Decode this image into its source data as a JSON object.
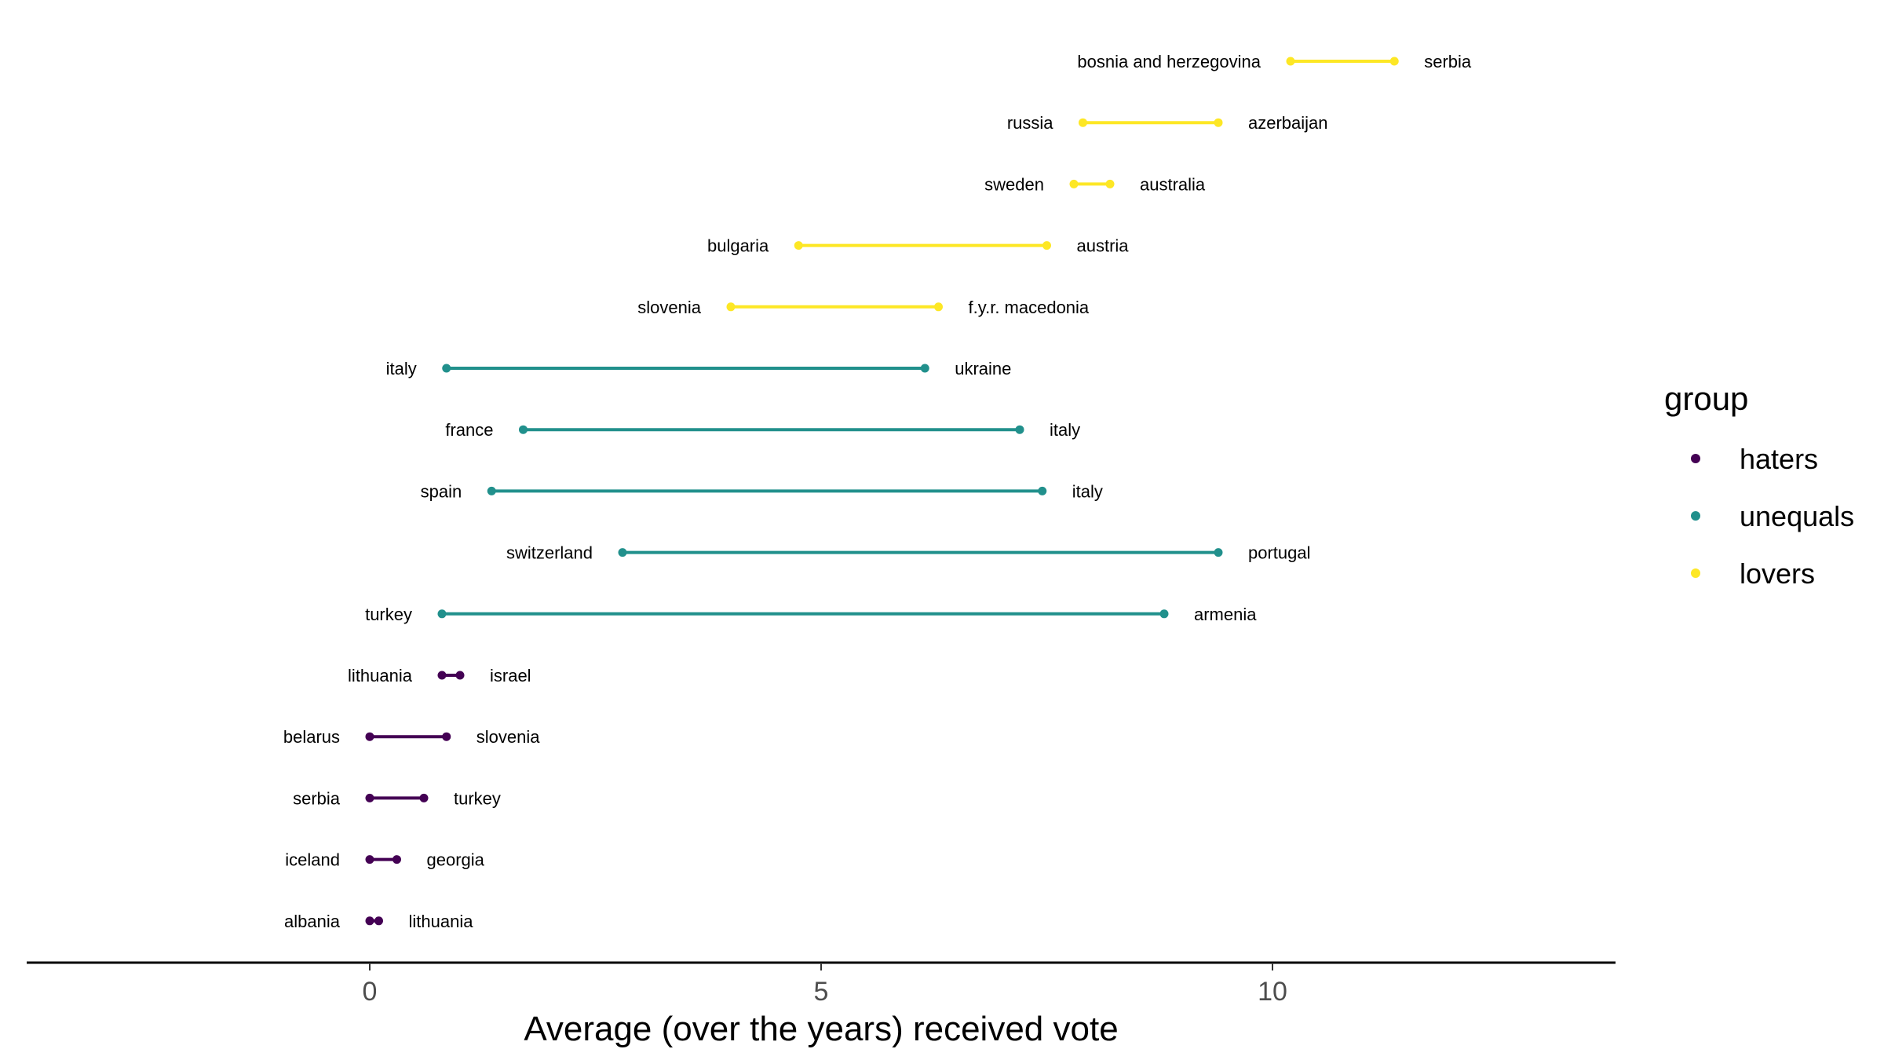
{
  "chart_data": {
    "type": "dumbbell",
    "xlabel": "Average (over the years) received vote",
    "ylabel": "",
    "xlim": [
      -3.8,
      13.8
    ],
    "x_ticks": [
      "0",
      "5",
      "10"
    ],
    "grid": false,
    "legend": {
      "title": "group",
      "position": "right",
      "entries": [
        {
          "name": "haters",
          "color": "#440154"
        },
        {
          "name": "unequals",
          "color": "#21908C"
        },
        {
          "name": "lovers",
          "color": "#FDE725"
        }
      ]
    },
    "rows": [
      {
        "group": "lovers",
        "low_label": "bosnia and herzegovina",
        "low": 10.2,
        "high_label": "serbia",
        "high": 11.35
      },
      {
        "group": "lovers",
        "low_label": "russia",
        "low": 7.9,
        "high_label": "azerbaijan",
        "high": 9.4
      },
      {
        "group": "lovers",
        "low_label": "sweden",
        "low": 7.8,
        "high_label": "australia",
        "high": 8.2
      },
      {
        "group": "lovers",
        "low_label": "bulgaria",
        "low": 4.75,
        "high_label": "austria",
        "high": 7.5
      },
      {
        "group": "lovers",
        "low_label": "slovenia",
        "low": 4.0,
        "high_label": "f.y.r. macedonia",
        "high": 6.3
      },
      {
        "group": "unequals",
        "low_label": "italy",
        "low": 0.85,
        "high_label": "ukraine",
        "high": 6.15
      },
      {
        "group": "unequals",
        "low_label": "france",
        "low": 1.7,
        "high_label": "italy",
        "high": 7.2
      },
      {
        "group": "unequals",
        "low_label": "spain",
        "low": 1.35,
        "high_label": "italy",
        "high": 7.45
      },
      {
        "group": "unequals",
        "low_label": "switzerland",
        "low": 2.8,
        "high_label": "portugal",
        "high": 9.4
      },
      {
        "group": "unequals",
        "low_label": "turkey",
        "low": 0.8,
        "high_label": "armenia",
        "high": 8.8
      },
      {
        "group": "haters",
        "low_label": "lithuania",
        "low": 0.8,
        "high_label": "israel",
        "high": 1.0
      },
      {
        "group": "haters",
        "low_label": "belarus",
        "low": 0.0,
        "high_label": "slovenia",
        "high": 0.85
      },
      {
        "group": "haters",
        "low_label": "serbia",
        "low": 0.0,
        "high_label": "turkey",
        "high": 0.6
      },
      {
        "group": "haters",
        "low_label": "iceland",
        "low": 0.0,
        "high_label": "georgia",
        "high": 0.3
      },
      {
        "group": "haters",
        "low_label": "albania",
        "low": 0.0,
        "high_label": "lithuania",
        "high": 0.1
      }
    ]
  }
}
